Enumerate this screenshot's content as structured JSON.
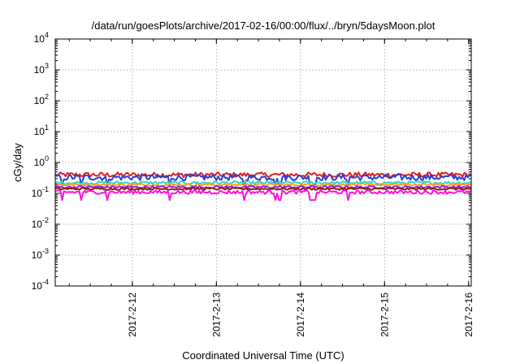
{
  "chart_data": {
    "type": "line",
    "title": "/data/run/goesPlots/archive/2017-02-16/00:00/flux/../bryn/5daysMoon.plot",
    "xlabel": "Coordinated Universal Time (UTC)",
    "ylabel": "cGy/day",
    "yscale": "log",
    "ylim": [
      0.0001,
      10000
    ],
    "y_ticks": [
      {
        "base": "10",
        "exp": "-4",
        "value": 0.0001
      },
      {
        "base": "10",
        "exp": "-3",
        "value": 0.001
      },
      {
        "base": "10",
        "exp": "-2",
        "value": 0.01
      },
      {
        "base": "10",
        "exp": "-1",
        "value": 0.1
      },
      {
        "base": "10",
        "exp": "0",
        "value": 1
      },
      {
        "base": "10",
        "exp": "1",
        "value": 10
      },
      {
        "base": "10",
        "exp": "2",
        "value": 100
      },
      {
        "base": "10",
        "exp": "3",
        "value": 1000
      },
      {
        "base": "10",
        "exp": "4",
        "value": 10000
      }
    ],
    "xlim": [
      "2017-02-11 02:00",
      "2017-02-16 00:45"
    ],
    "x_ticks": [
      "2017-2-12",
      "2017-2-13",
      "2017-2-14",
      "2017-2-15",
      "2017-2-16"
    ],
    "x_tick_dates": [
      "2017-02-12",
      "2017-02-13",
      "2017-02-14",
      "2017-02-15",
      "2017-02-16"
    ],
    "grid": true,
    "legend": "none",
    "series": [
      {
        "color": "#e0201a",
        "level": 0.4,
        "jitter": 0.16,
        "dips": false
      },
      {
        "color": "#2b3fd6",
        "level": 0.33,
        "jitter": 0.2,
        "dips": true
      },
      {
        "color": "#2ad8c8",
        "level": 0.22,
        "jitter": 0.1,
        "dips": false
      },
      {
        "color": "#ff9f1a",
        "level": 0.19,
        "jitter": 0.08,
        "dips": false
      },
      {
        "color": "#a020d8",
        "level": 0.16,
        "jitter": 0.08,
        "dips": false
      },
      {
        "color": "#8b1a1a",
        "level": 0.14,
        "jitter": 0.07,
        "dips": false
      },
      {
        "color": "#ff10e0",
        "level": 0.11,
        "jitter": 0.12,
        "dips": true
      }
    ]
  }
}
